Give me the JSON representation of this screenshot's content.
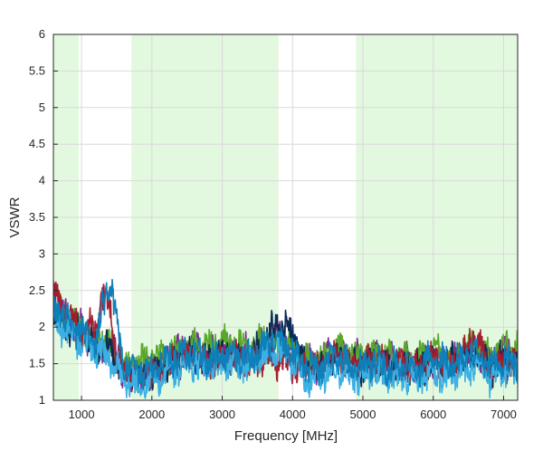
{
  "chart_data": {
    "type": "line",
    "title": "",
    "xlabel": "Frequency [MHz]",
    "ylabel": "VSWR",
    "xlim": [
      600,
      7200
    ],
    "ylim": [
      1,
      6
    ],
    "x_ticks": [
      "1000",
      "2000",
      "3000",
      "4000",
      "5000",
      "6000",
      "7000"
    ],
    "x_tick_values": [
      1000,
      2000,
      3000,
      4000,
      5000,
      6000,
      7000
    ],
    "y_ticks": [
      "1",
      "1.5",
      "2",
      "2.5",
      "3",
      "3.5",
      "4",
      "4.5",
      "5",
      "5.5",
      "6"
    ],
    "y_tick_values": [
      1,
      1.5,
      2,
      2.5,
      3,
      3.5,
      4,
      4.5,
      5,
      5.5,
      6
    ],
    "grid": true,
    "shaded_bands": [
      {
        "from": 600,
        "to": 960,
        "color": "#e3f9df"
      },
      {
        "from": 1710,
        "to": 3800,
        "color": "#e3f9df"
      },
      {
        "from": 4900,
        "to": 7200,
        "color": "#e3f9df"
      }
    ],
    "series": [
      {
        "color": "#7b2d8e",
        "x": [
          600,
          800,
          1000,
          1200,
          1400,
          1600,
          1800,
          2000,
          2200,
          2400,
          2600,
          2800,
          3000,
          3200,
          3400,
          3600,
          3800,
          4000,
          4200,
          4400,
          4600,
          4800,
          5000,
          5200,
          5400,
          5600,
          5800,
          6000,
          6200,
          6400,
          6600,
          6800,
          7000,
          7200
        ],
        "y": [
          2.4,
          2.1,
          1.95,
          1.8,
          1.75,
          1.4,
          1.35,
          1.4,
          1.55,
          1.65,
          1.7,
          1.6,
          1.75,
          1.7,
          1.65,
          1.8,
          1.9,
          1.75,
          1.5,
          1.5,
          1.7,
          1.6,
          1.55,
          1.6,
          1.5,
          1.55,
          1.5,
          1.6,
          1.55,
          1.6,
          1.7,
          1.5,
          1.65,
          1.6
        ]
      },
      {
        "color": "#5aa72a",
        "x": [
          600,
          800,
          1000,
          1200,
          1400,
          1600,
          1800,
          2000,
          2200,
          2400,
          2600,
          2800,
          3000,
          3200,
          3400,
          3600,
          3800,
          4000,
          4200,
          4400,
          4600,
          4800,
          5000,
          5200,
          5400,
          5600,
          5800,
          6000,
          6200,
          6400,
          6600,
          6800,
          7000,
          7200
        ],
        "y": [
          2.3,
          2.15,
          2.0,
          1.85,
          1.8,
          1.45,
          1.5,
          1.55,
          1.6,
          1.7,
          1.75,
          1.7,
          1.8,
          1.75,
          1.7,
          1.85,
          1.8,
          1.7,
          1.55,
          1.55,
          1.75,
          1.65,
          1.6,
          1.65,
          1.55,
          1.6,
          1.55,
          1.65,
          1.6,
          1.65,
          1.75,
          1.55,
          1.7,
          1.75
        ]
      },
      {
        "color": "#0c2a54",
        "x": [
          600,
          800,
          1000,
          1200,
          1400,
          1600,
          1800,
          2000,
          2200,
          2400,
          2600,
          2800,
          3000,
          3200,
          3400,
          3600,
          3800,
          4000,
          4200,
          4400,
          4600,
          4800,
          5000,
          5200,
          5400,
          5600,
          5800,
          6000,
          6200,
          6400,
          6600,
          6800,
          7000,
          7200
        ],
        "y": [
          2.2,
          2.0,
          1.9,
          1.75,
          1.7,
          1.35,
          1.3,
          1.35,
          1.45,
          1.55,
          1.6,
          1.55,
          1.65,
          1.6,
          1.6,
          1.75,
          2.1,
          1.9,
          1.45,
          1.4,
          1.6,
          1.5,
          1.45,
          1.5,
          1.45,
          1.5,
          1.45,
          1.5,
          1.5,
          1.55,
          1.6,
          1.45,
          1.55,
          1.5
        ]
      },
      {
        "color": "#a31f2e",
        "x": [
          600,
          800,
          1000,
          1200,
          1300,
          1400,
          1500,
          1600,
          1800,
          2000,
          2200,
          2400,
          2600,
          2800,
          3000,
          3200,
          3400,
          3600,
          3800,
          4000,
          4200,
          4400,
          4600,
          4800,
          5000,
          5200,
          5400,
          5600,
          5800,
          6000,
          6200,
          6400,
          6600,
          6800,
          7000,
          7200
        ],
        "y": [
          2.5,
          2.15,
          1.95,
          2.0,
          2.4,
          2.3,
          1.6,
          1.45,
          1.3,
          1.35,
          1.5,
          1.55,
          1.6,
          1.5,
          1.55,
          1.6,
          1.5,
          1.6,
          1.55,
          1.5,
          1.4,
          1.45,
          1.6,
          1.5,
          1.5,
          1.55,
          1.45,
          1.5,
          1.45,
          1.55,
          1.5,
          1.6,
          1.9,
          1.4,
          1.5,
          1.5
        ]
      },
      {
        "color": "#3ab0e4",
        "x": [
          600,
          800,
          1000,
          1200,
          1400,
          1600,
          1800,
          2000,
          2200,
          2400,
          2600,
          2800,
          3000,
          3200,
          3400,
          3600,
          3800,
          4000,
          4200,
          4400,
          4600,
          4800,
          5000,
          5200,
          5400,
          5600,
          5800,
          6000,
          6200,
          6400,
          6600,
          6800,
          7000,
          7200
        ],
        "y": [
          2.1,
          1.95,
          1.8,
          1.7,
          1.55,
          1.3,
          1.2,
          1.25,
          1.35,
          1.45,
          1.5,
          1.4,
          1.5,
          1.5,
          1.45,
          1.6,
          1.7,
          1.55,
          1.3,
          1.3,
          1.45,
          1.35,
          1.3,
          1.35,
          1.3,
          1.35,
          1.3,
          1.35,
          1.3,
          1.4,
          1.45,
          1.3,
          1.4,
          1.35
        ]
      },
      {
        "color": "#0e7fb8",
        "x": [
          600,
          800,
          1000,
          1200,
          1400,
          1600,
          1800,
          2000,
          2200,
          2400,
          2600,
          2800,
          3000,
          3200,
          3400,
          3600,
          3800,
          4000,
          4200,
          4400,
          4600,
          4800,
          5000,
          5200,
          5400,
          5600,
          5800,
          6000,
          6200,
          6400,
          6600,
          6800,
          7000,
          7200
        ],
        "y": [
          2.3,
          2.05,
          1.9,
          1.8,
          2.7,
          1.5,
          1.4,
          1.45,
          1.55,
          1.6,
          1.65,
          1.55,
          1.65,
          1.6,
          1.55,
          1.75,
          1.85,
          1.65,
          1.45,
          1.45,
          1.6,
          1.5,
          1.45,
          1.5,
          1.45,
          1.5,
          1.45,
          1.55,
          1.5,
          1.55,
          1.65,
          1.45,
          1.55,
          1.5
        ]
      }
    ]
  }
}
